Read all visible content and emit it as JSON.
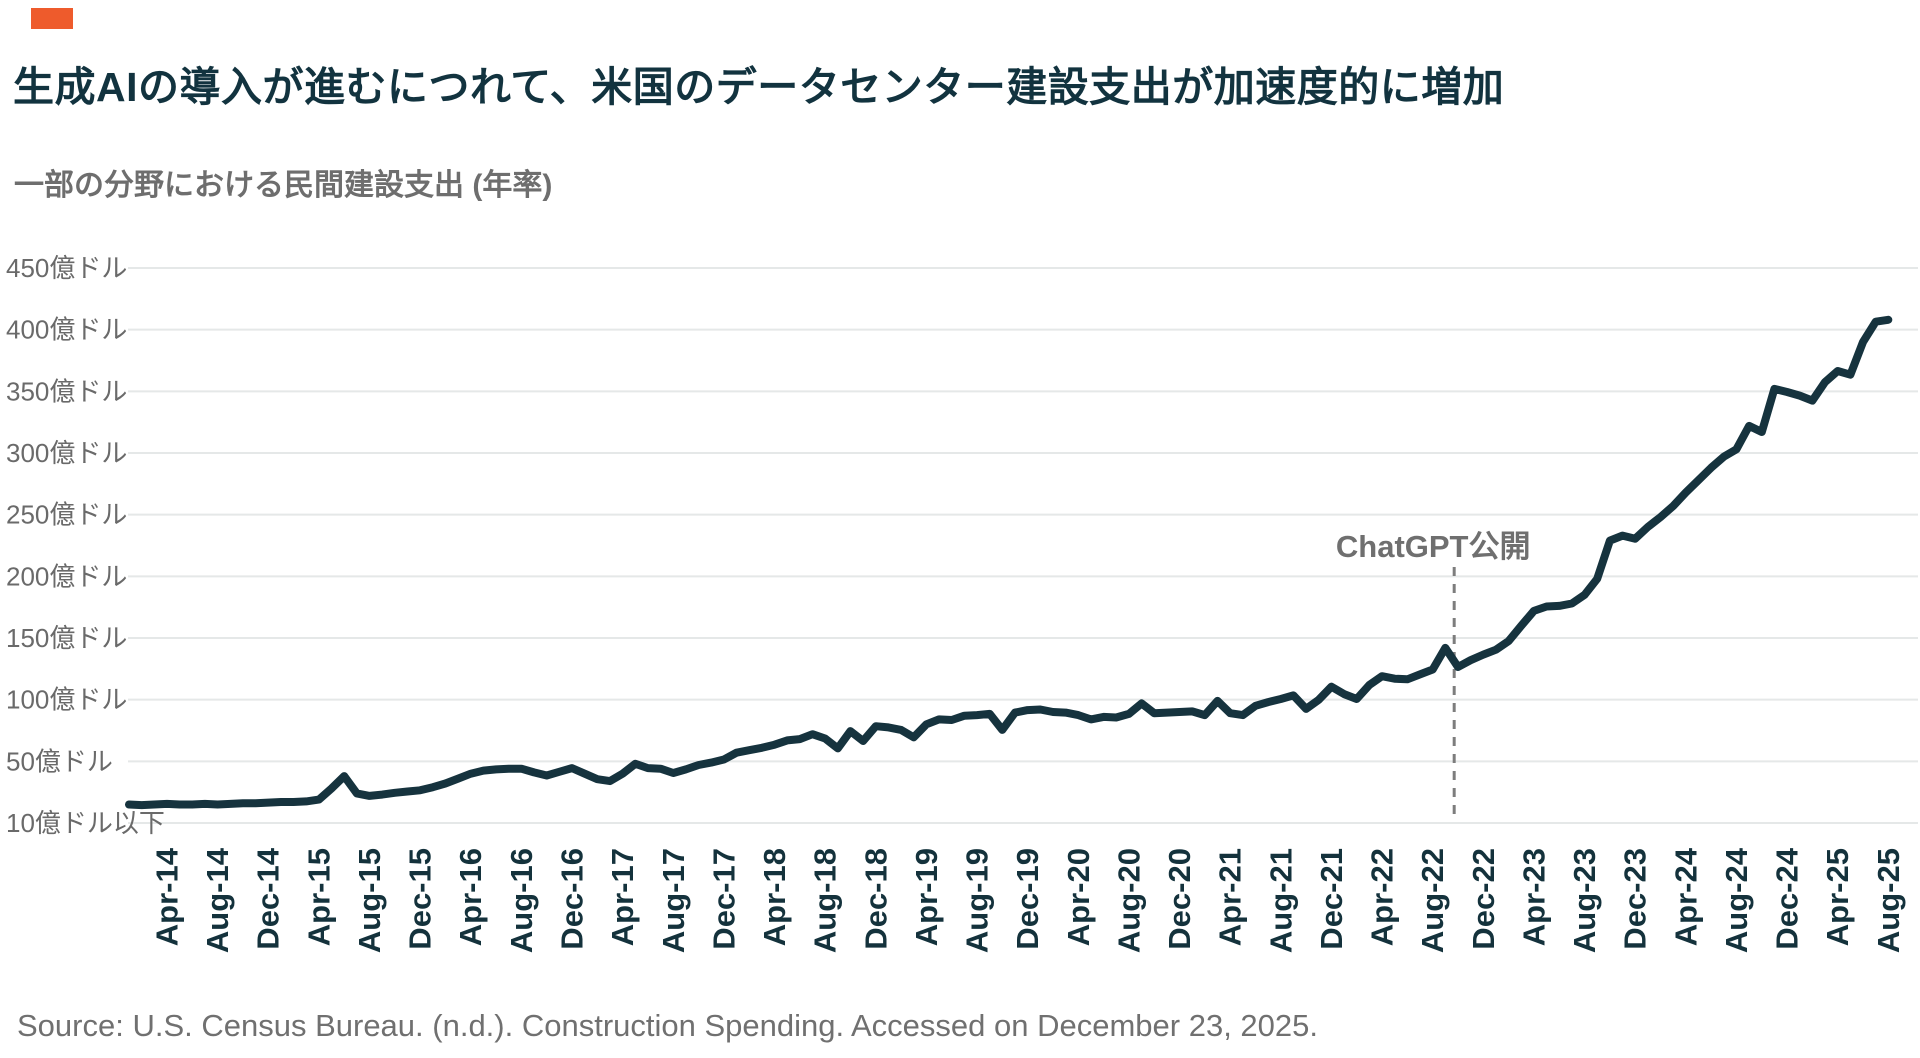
{
  "header": {
    "title": "生成AIの導入が進むにつれて、米国のデータセンター建設支出が加速度的に増加",
    "subtitle": "一部の分野における民間建設支出 (年率)"
  },
  "footer": {
    "source": "Source: U.S. Census Bureau. (n.d.). Construction Spending. Accessed on December 23, 2025."
  },
  "colors": {
    "accent": "#ee5b2c",
    "line": "#16333e",
    "grid": "#e5e8e8",
    "y_axis_text": "#6a6a6a",
    "x_axis_text": "#14323c",
    "annotation": "#6f6f6f",
    "title_text": "#12333f",
    "subtitle_text": "#6e6e6e",
    "source_text": "#707070"
  },
  "chart_data": {
    "type": "line",
    "title": "一部の分野における民間建設支出 (年率)",
    "unit": "億ドル",
    "frequency": "monthly",
    "x_start": "2014-01",
    "x_end": "2025-08",
    "x_axis": {
      "tick_labels": [
        "Apr-14",
        "Aug-14",
        "Dec-14",
        "Apr-15",
        "Aug-15",
        "Dec-15",
        "Apr-16",
        "Aug-16",
        "Dec-16",
        "Apr-17",
        "Aug-17",
        "Dec-17",
        "Apr-18",
        "Aug-18",
        "Dec-18",
        "Apr-19",
        "Aug-19",
        "Dec-19",
        "Apr-20",
        "Aug-20",
        "Dec-20",
        "Apr-21",
        "Aug-21",
        "Dec-21",
        "Apr-22",
        "Aug-22",
        "Dec-22",
        "Apr-23",
        "Aug-23",
        "Dec-23",
        "Apr-24",
        "Aug-24",
        "Dec-24",
        "Apr-25",
        "Aug-25"
      ],
      "first_tick_month_index": 3,
      "tick_month_step": 4
    },
    "y_axis": {
      "tick_labels": [
        "450億ドル",
        "400億ドル",
        "350億ドル",
        "300億ドル",
        "250億ドル",
        "200億ドル",
        "150億ドル",
        "100億ドル",
        "50億ドル",
        "10億ドル以下"
      ],
      "tick_values": [
        450,
        400,
        350,
        300,
        250,
        200,
        150,
        100,
        50,
        0
      ],
      "min": 0,
      "max": 450,
      "grid": true
    },
    "annotation": {
      "label": "ChatGPT公開",
      "x_month_index": 104.7
    },
    "series": [
      {
        "name": "データセンター建設支出",
        "values": [
          15,
          14.5,
          15,
          15.5,
          15,
          15,
          15.5,
          15,
          15.5,
          16,
          16,
          16.5,
          17,
          17,
          17.5,
          19,
          28,
          38,
          24,
          22,
          23,
          24.5,
          25.5,
          26.5,
          29,
          32,
          36,
          40,
          42.5,
          43.5,
          44,
          44,
          41,
          38.5,
          41.5,
          44.5,
          40,
          35.5,
          34,
          40,
          48,
          44.5,
          44,
          40.5,
          43.5,
          47,
          49,
          51.5,
          57,
          59,
          61,
          63.5,
          67,
          68,
          72,
          68.5,
          60.5,
          74.5,
          66.5,
          78.5,
          77.5,
          75.5,
          69.5,
          80,
          84,
          83.5,
          87,
          87.5,
          88.5,
          75.5,
          89.5,
          91.5,
          92,
          90,
          89.5,
          87.5,
          84,
          86,
          85.5,
          88.5,
          97,
          89,
          89.5,
          90,
          90.5,
          87.5,
          99,
          89,
          87.5,
          95,
          98,
          100.5,
          103.5,
          92.5,
          100,
          110.5,
          104.5,
          100.5,
          112,
          119,
          117,
          116.5,
          120.5,
          124.5,
          142,
          126.5,
          132,
          136.5,
          140.5,
          147.5,
          160,
          172,
          175.5,
          176,
          178,
          185,
          198,
          229,
          233,
          230.5,
          240,
          248,
          257,
          268,
          278,
          288,
          297,
          303,
          322,
          317,
          352,
          349.5,
          346.5,
          342.5,
          357.5,
          366.5,
          363.5,
          390,
          406.5,
          408
        ]
      }
    ],
    "legend": false
  }
}
